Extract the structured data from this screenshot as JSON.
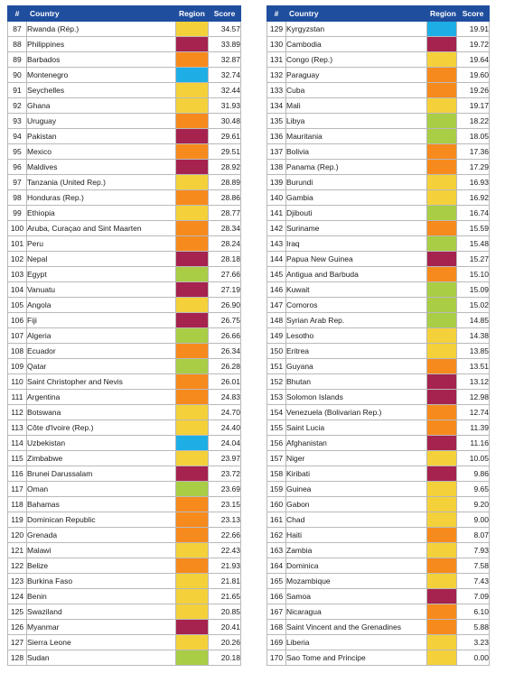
{
  "headers": {
    "num": "#",
    "country": "Country",
    "region": "Region",
    "score": "Score"
  },
  "region_colors": {
    "yellow": "#f4d13a",
    "crimson": "#a5234e",
    "orange": "#f78a1d",
    "blue": "#1eaee6",
    "green": "#a9cd45"
  },
  "left_rows": [
    {
      "num": "87",
      "country": "Rwanda (Rép.)",
      "region": "yellow",
      "score": "34.57"
    },
    {
      "num": "88",
      "country": "Philippines",
      "region": "crimson",
      "score": "33.89"
    },
    {
      "num": "89",
      "country": "Barbados",
      "region": "orange",
      "score": "32.87"
    },
    {
      "num": "90",
      "country": "Montenegro",
      "region": "blue",
      "score": "32.74"
    },
    {
      "num": "91",
      "country": "Seychelles",
      "region": "yellow",
      "score": "32.44"
    },
    {
      "num": "92",
      "country": "Ghana",
      "region": "yellow",
      "score": "31.93"
    },
    {
      "num": "93",
      "country": "Uruguay",
      "region": "orange",
      "score": "30.48"
    },
    {
      "num": "94",
      "country": "Pakistan",
      "region": "crimson",
      "score": "29.61"
    },
    {
      "num": "95",
      "country": "Mexico",
      "region": "orange",
      "score": "29.51"
    },
    {
      "num": "96",
      "country": "Maldives",
      "region": "crimson",
      "score": "28.92"
    },
    {
      "num": "97",
      "country": "Tanzania (United Rep.)",
      "region": "yellow",
      "score": "28.89"
    },
    {
      "num": "98",
      "country": "Honduras (Rep.)",
      "region": "orange",
      "score": "28.86"
    },
    {
      "num": "99",
      "country": "Ethiopia",
      "region": "yellow",
      "score": "28.77"
    },
    {
      "num": "100",
      "country": "Aruba, Curaçao and Sint Maarten",
      "region": "orange",
      "score": "28.34"
    },
    {
      "num": "101",
      "country": "Peru",
      "region": "orange",
      "score": "28.24"
    },
    {
      "num": "102",
      "country": "Nepal",
      "region": "crimson",
      "score": "28.18"
    },
    {
      "num": "103",
      "country": "Egypt",
      "region": "green",
      "score": "27.66"
    },
    {
      "num": "104",
      "country": "Vanuatu",
      "region": "crimson",
      "score": "27.19"
    },
    {
      "num": "105",
      "country": "Angola",
      "region": "yellow",
      "score": "26.90"
    },
    {
      "num": "106",
      "country": "Fiji",
      "region": "crimson",
      "score": "26.75"
    },
    {
      "num": "107",
      "country": "Algeria",
      "region": "green",
      "score": "26.66"
    },
    {
      "num": "108",
      "country": "Ecuador",
      "region": "orange",
      "score": "26.34"
    },
    {
      "num": "109",
      "country": "Qatar",
      "region": "green",
      "score": "26.28"
    },
    {
      "num": "110",
      "country": "Saint Christopher and Nevis",
      "region": "orange",
      "score": "26.01"
    },
    {
      "num": "111",
      "country": "Argentina",
      "region": "orange",
      "score": "24.83"
    },
    {
      "num": "112",
      "country": "Botswana",
      "region": "yellow",
      "score": "24.70"
    },
    {
      "num": "113",
      "country": "Côte d'Ivoire (Rep.)",
      "region": "yellow",
      "score": "24.40"
    },
    {
      "num": "114",
      "country": "Uzbekistan",
      "region": "blue",
      "score": "24.04"
    },
    {
      "num": "115",
      "country": "Zimbabwe",
      "region": "yellow",
      "score": "23.97"
    },
    {
      "num": "116",
      "country": "Brunei Darussalam",
      "region": "crimson",
      "score": "23.72"
    },
    {
      "num": "117",
      "country": "Oman",
      "region": "green",
      "score": "23.69"
    },
    {
      "num": "118",
      "country": "Bahamas",
      "region": "orange",
      "score": "23.15"
    },
    {
      "num": "119",
      "country": "Dominican Republic",
      "region": "orange",
      "score": "23.13"
    },
    {
      "num": "120",
      "country": "Grenada",
      "region": "orange",
      "score": "22.66"
    },
    {
      "num": "121",
      "country": "Malawi",
      "region": "yellow",
      "score": "22.43"
    },
    {
      "num": "122",
      "country": "Belize",
      "region": "orange",
      "score": "21.93"
    },
    {
      "num": "123",
      "country": "Burkina Faso",
      "region": "yellow",
      "score": "21.81"
    },
    {
      "num": "124",
      "country": "Benin",
      "region": "yellow",
      "score": "21.65"
    },
    {
      "num": "125",
      "country": "Swaziland",
      "region": "yellow",
      "score": "20.85"
    },
    {
      "num": "126",
      "country": "Myanmar",
      "region": "crimson",
      "score": "20.41"
    },
    {
      "num": "127",
      "country": "Sierra Leone",
      "region": "yellow",
      "score": "20.26"
    },
    {
      "num": "128",
      "country": "Sudan",
      "region": "green",
      "score": "20.18"
    }
  ],
  "right_rows": [
    {
      "num": "129",
      "country": "Kyrgyzstan",
      "region": "blue",
      "score": "19.91"
    },
    {
      "num": "130",
      "country": "Cambodia",
      "region": "crimson",
      "score": "19.72"
    },
    {
      "num": "131",
      "country": "Congo (Rep.)",
      "region": "yellow",
      "score": "19.64"
    },
    {
      "num": "132",
      "country": "Paraguay",
      "region": "orange",
      "score": "19.60"
    },
    {
      "num": "133",
      "country": "Cuba",
      "region": "orange",
      "score": "19.26"
    },
    {
      "num": "134",
      "country": "Mali",
      "region": "yellow",
      "score": "19.17"
    },
    {
      "num": "135",
      "country": "Libya",
      "region": "green",
      "score": "18.22"
    },
    {
      "num": "136",
      "country": "Mauritania",
      "region": "green",
      "score": "18.05"
    },
    {
      "num": "137",
      "country": "Bolivia",
      "region": "orange",
      "score": "17.36"
    },
    {
      "num": "138",
      "country": "Panama (Rep.)",
      "region": "orange",
      "score": "17.29"
    },
    {
      "num": "139",
      "country": "Burundi",
      "region": "yellow",
      "score": "16.93"
    },
    {
      "num": "140",
      "country": "Gambia",
      "region": "yellow",
      "score": "16.92"
    },
    {
      "num": "141",
      "country": "Djibouti",
      "region": "green",
      "score": "16.74"
    },
    {
      "num": "142",
      "country": "Suriname",
      "region": "orange",
      "score": "15.59"
    },
    {
      "num": "143",
      "country": "Iraq",
      "region": "green",
      "score": "15.48"
    },
    {
      "num": "144",
      "country": "Papua New Guinea",
      "region": "crimson",
      "score": "15.27"
    },
    {
      "num": "145",
      "country": "Antigua and Barbuda",
      "region": "orange",
      "score": "15.10"
    },
    {
      "num": "146",
      "country": "Kuwait",
      "region": "green",
      "score": "15.09"
    },
    {
      "num": "147",
      "country": "Comoros",
      "region": "green",
      "score": "15.02"
    },
    {
      "num": "148",
      "country": "Syrian Arab Rep.",
      "region": "green",
      "score": "14.85"
    },
    {
      "num": "149",
      "country": "Lesotho",
      "region": "yellow",
      "score": "14.38"
    },
    {
      "num": "150",
      "country": "Eritrea",
      "region": "yellow",
      "score": "13.85"
    },
    {
      "num": "151",
      "country": "Guyana",
      "region": "orange",
      "score": "13.51"
    },
    {
      "num": "152",
      "country": "Bhutan",
      "region": "crimson",
      "score": "13.12"
    },
    {
      "num": "153",
      "country": "Solomon Islands",
      "region": "crimson",
      "score": "12.98"
    },
    {
      "num": "154",
      "country": "Venezuela (Bolivarian Rep.)",
      "region": "orange",
      "score": "12.74"
    },
    {
      "num": "155",
      "country": "Saint Lucia",
      "region": "orange",
      "score": "11.39"
    },
    {
      "num": "156",
      "country": "Afghanistan",
      "region": "crimson",
      "score": "11.16"
    },
    {
      "num": "157",
      "country": "Niger",
      "region": "yellow",
      "score": "10.05"
    },
    {
      "num": "158",
      "country": "Kiribati",
      "region": "crimson",
      "score": "9.86"
    },
    {
      "num": "159",
      "country": "Guinea",
      "region": "yellow",
      "score": "9.65"
    },
    {
      "num": "160",
      "country": "Gabon",
      "region": "yellow",
      "score": "9.20"
    },
    {
      "num": "161",
      "country": "Chad",
      "region": "yellow",
      "score": "9.00"
    },
    {
      "num": "162",
      "country": "Haiti",
      "region": "orange",
      "score": "8.07"
    },
    {
      "num": "163",
      "country": "Zambia",
      "region": "yellow",
      "score": "7.93"
    },
    {
      "num": "164",
      "country": "Dominica",
      "region": "orange",
      "score": "7.58"
    },
    {
      "num": "165",
      "country": "Mozambique",
      "region": "yellow",
      "score": "7.43"
    },
    {
      "num": "166",
      "country": "Samoa",
      "region": "crimson",
      "score": "7.09"
    },
    {
      "num": "167",
      "country": "Nicaragua",
      "region": "orange",
      "score": "6.10"
    },
    {
      "num": "168",
      "country": "Saint Vincent and the Grenadines",
      "region": "orange",
      "score": "5.88"
    },
    {
      "num": "169",
      "country": "Liberia",
      "region": "yellow",
      "score": "3.23"
    },
    {
      "num": "170",
      "country": "Sao Tome and Principe",
      "region": "yellow",
      "score": "0.00"
    }
  ]
}
